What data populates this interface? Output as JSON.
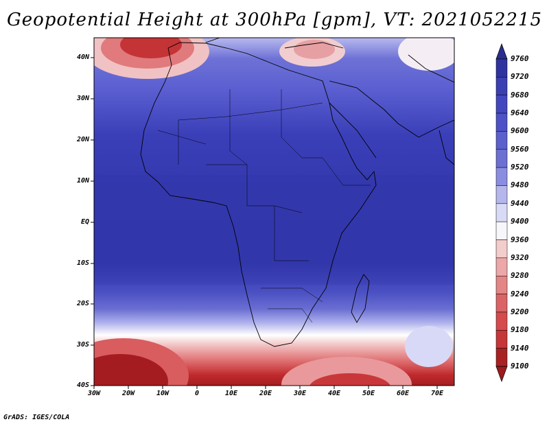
{
  "title": "Geopotential Height at 300hPa [gpm], VT: 2021052215",
  "footer": "GrADS: IGES/COLA",
  "lat_labels": [
    "40N",
    "30N",
    "20N",
    "10N",
    "EQ",
    "10S",
    "20S",
    "30S",
    "40S"
  ],
  "lon_labels": [
    "30W",
    "20W",
    "10W",
    "0",
    "10E",
    "20E",
    "30E",
    "40E",
    "50E",
    "60E",
    "70E"
  ],
  "colorbar": {
    "levels": [
      "9760",
      "9720",
      "9680",
      "9640",
      "9600",
      "9560",
      "9520",
      "9480",
      "9440",
      "9400",
      "9360",
      "9320",
      "9280",
      "9240",
      "9200",
      "9180",
      "9140",
      "9100"
    ],
    "colors": [
      "#2a2d8f",
      "#2f33a0",
      "#3a3fb2",
      "#4347be",
      "#4d52c6",
      "#5c60cc",
      "#6c70d3",
      "#8a8de0",
      "#b4b6ec",
      "#d9daf6",
      "#f6f6fb",
      "#f3cccc",
      "#eca7a8",
      "#e48586",
      "#da6465",
      "#d54a4c",
      "#c53738",
      "#a82224",
      "#9b1b1e"
    ]
  },
  "map": {
    "domain": "30W-75E, 40S-45N",
    "variable": "300hPa geopotential height",
    "units": "gpm"
  }
}
